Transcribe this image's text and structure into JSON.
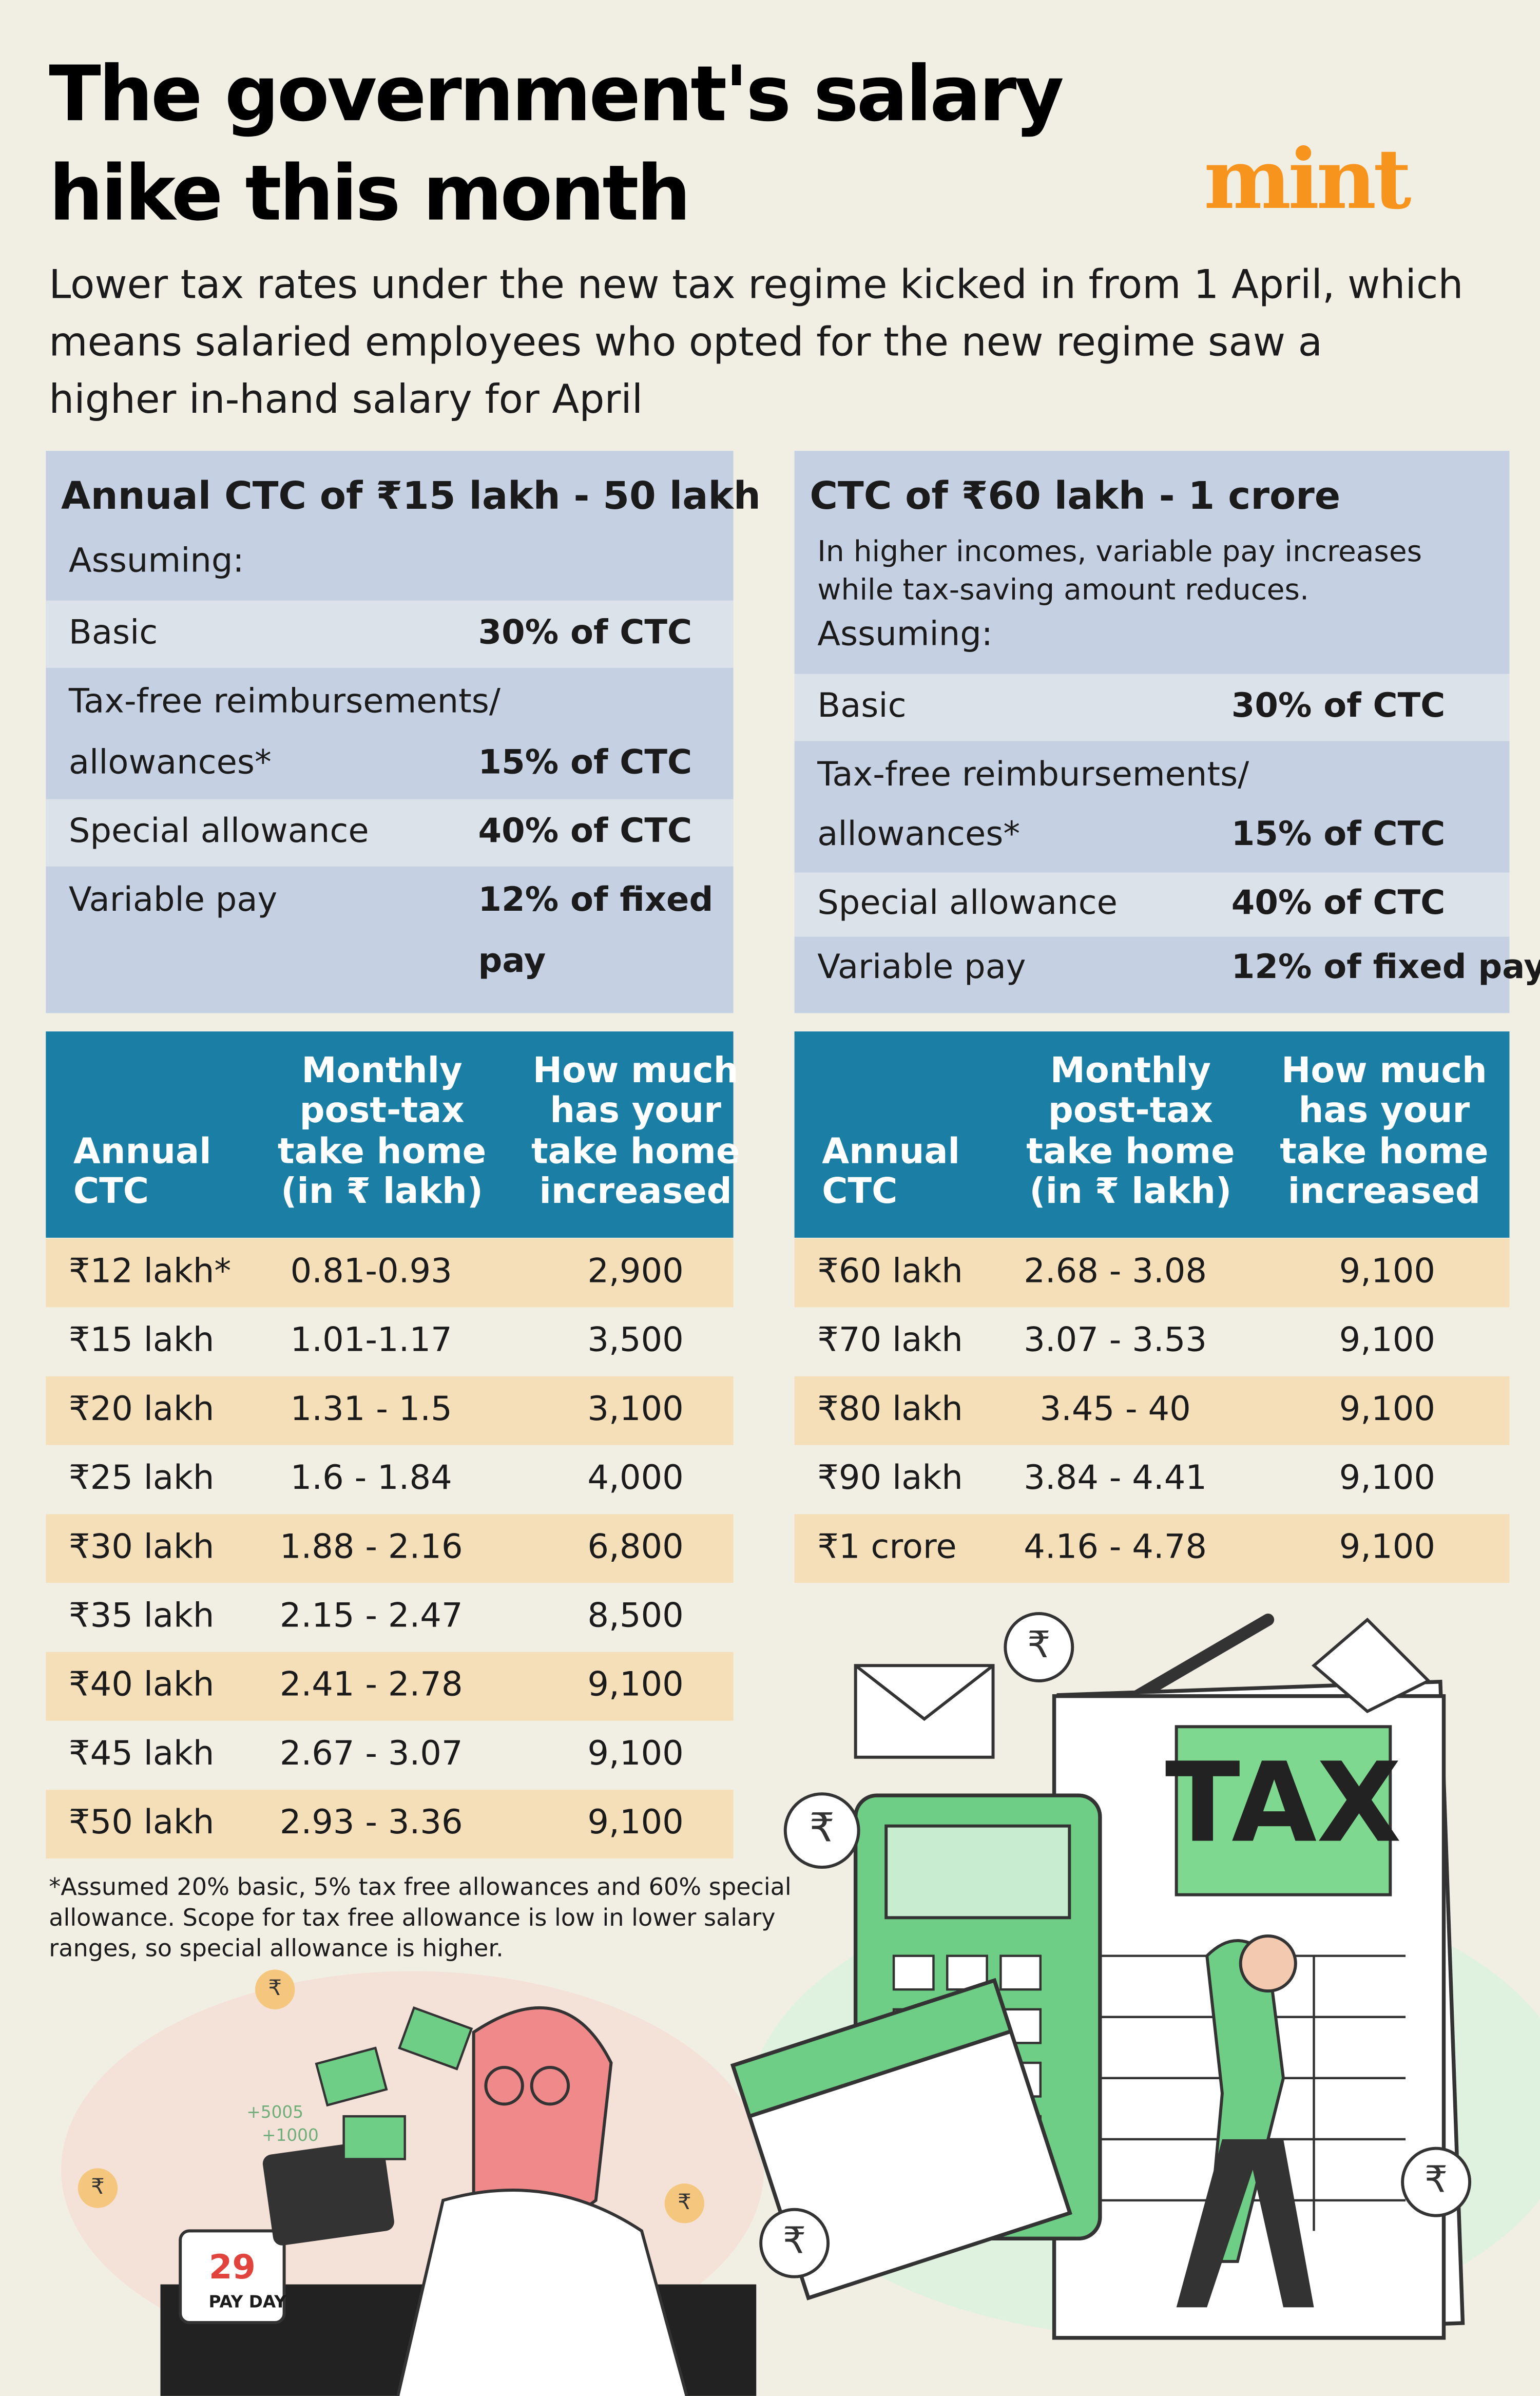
{
  "header": {
    "title_lines": [
      "The government's salary",
      "hike this month"
    ],
    "logo": "mint",
    "subtitle_lines": [
      "Lower tax rates under the new tax regime kicked in from 1 April, which",
      "means salaried employees who opted for the new regime saw a",
      "higher in-hand salary for April"
    ]
  },
  "panels": [
    {
      "title": "Annual CTC of ₹15 lakh - 50 lakh",
      "assuming": "Assuming:",
      "rows": [
        {
          "label": [
            "Basic"
          ],
          "value": [
            "30% of CTC"
          ]
        },
        {
          "label": [
            "Tax-free reimbursements/",
            "allowances*"
          ],
          "value": [
            "15% of CTC"
          ]
        },
        {
          "label": [
            "Special allowance"
          ],
          "value": [
            "40% of CTC"
          ]
        },
        {
          "label": [
            "Variable pay"
          ],
          "value": [
            "12% of fixed",
            "pay"
          ]
        }
      ],
      "table": {
        "headers": [
          [
            "Annual",
            "CTC"
          ],
          [
            "Monthly",
            "post-tax",
            "take home",
            "(in ₹ lakh)"
          ],
          [
            "How much",
            "has your",
            "take home",
            "increased"
          ]
        ],
        "rows": [
          [
            "₹12 lakh*",
            "0.81-0.93",
            "2,900"
          ],
          [
            "₹15 lakh",
            "1.01-1.17",
            "3,500"
          ],
          [
            "₹20 lakh",
            "1.31 - 1.5",
            "3,100"
          ],
          [
            "₹25 lakh",
            "1.6 - 1.84",
            "4,000"
          ],
          [
            "₹30 lakh",
            "1.88 - 2.16",
            "6,800"
          ],
          [
            "₹35 lakh",
            "2.15 - 2.47",
            "8,500"
          ],
          [
            "₹40 lakh",
            "2.41 - 2.78",
            "9,100"
          ],
          [
            "₹45 lakh",
            "2.67 - 3.07",
            "9,100"
          ],
          [
            "₹50 lakh",
            "2.93 - 3.36",
            "9,100"
          ]
        ]
      }
    },
    {
      "title": "CTC of ₹60 lakh - 1 crore",
      "note_lines": [
        "In higher incomes, variable pay increases",
        "while tax-saving amount reduces."
      ],
      "assuming": "Assuming:",
      "rows": [
        {
          "label": [
            "Basic"
          ],
          "value": [
            "30% of CTC"
          ]
        },
        {
          "label": [
            "Tax-free reimbursements/",
            "allowances*"
          ],
          "value": [
            "15% of CTC"
          ]
        },
        {
          "label": [
            "Special allowance"
          ],
          "value": [
            "40% of CTC"
          ]
        },
        {
          "label": [
            "Variable pay"
          ],
          "value": [
            "12% of fixed pay"
          ]
        }
      ],
      "table": {
        "headers": [
          [
            "Annual",
            "CTC"
          ],
          [
            "Monthly",
            "post-tax",
            "take home",
            "(in ₹ lakh)"
          ],
          [
            "How much",
            "has your",
            "take home",
            "increased"
          ]
        ],
        "rows": [
          [
            "₹60 lakh",
            "2.68 - 3.08",
            "9,100"
          ],
          [
            "₹70 lakh",
            "3.07 - 3.53",
            "9,100"
          ],
          [
            "₹80 lakh",
            "3.45 - 40",
            "9,100"
          ],
          [
            "₹90 lakh",
            "3.84 - 4.41",
            "9,100"
          ],
          [
            "₹1 crore",
            "4.16 - 4.78",
            "9,100"
          ]
        ]
      }
    }
  ],
  "footnote_lines": [
    "*Assumed 20% basic, 5% tax free allowances and 60% special",
    "allowance. Scope for tax free allowance is low in lower salary",
    "ranges, so special allowance is higher."
  ],
  "illustration": {
    "tax_label": "TAX",
    "calendar_date": "29",
    "calendar_label": "PAY DAY",
    "bonus_labels": [
      "+5005",
      "+1000"
    ],
    "rupee_symbol": "₹"
  }
}
